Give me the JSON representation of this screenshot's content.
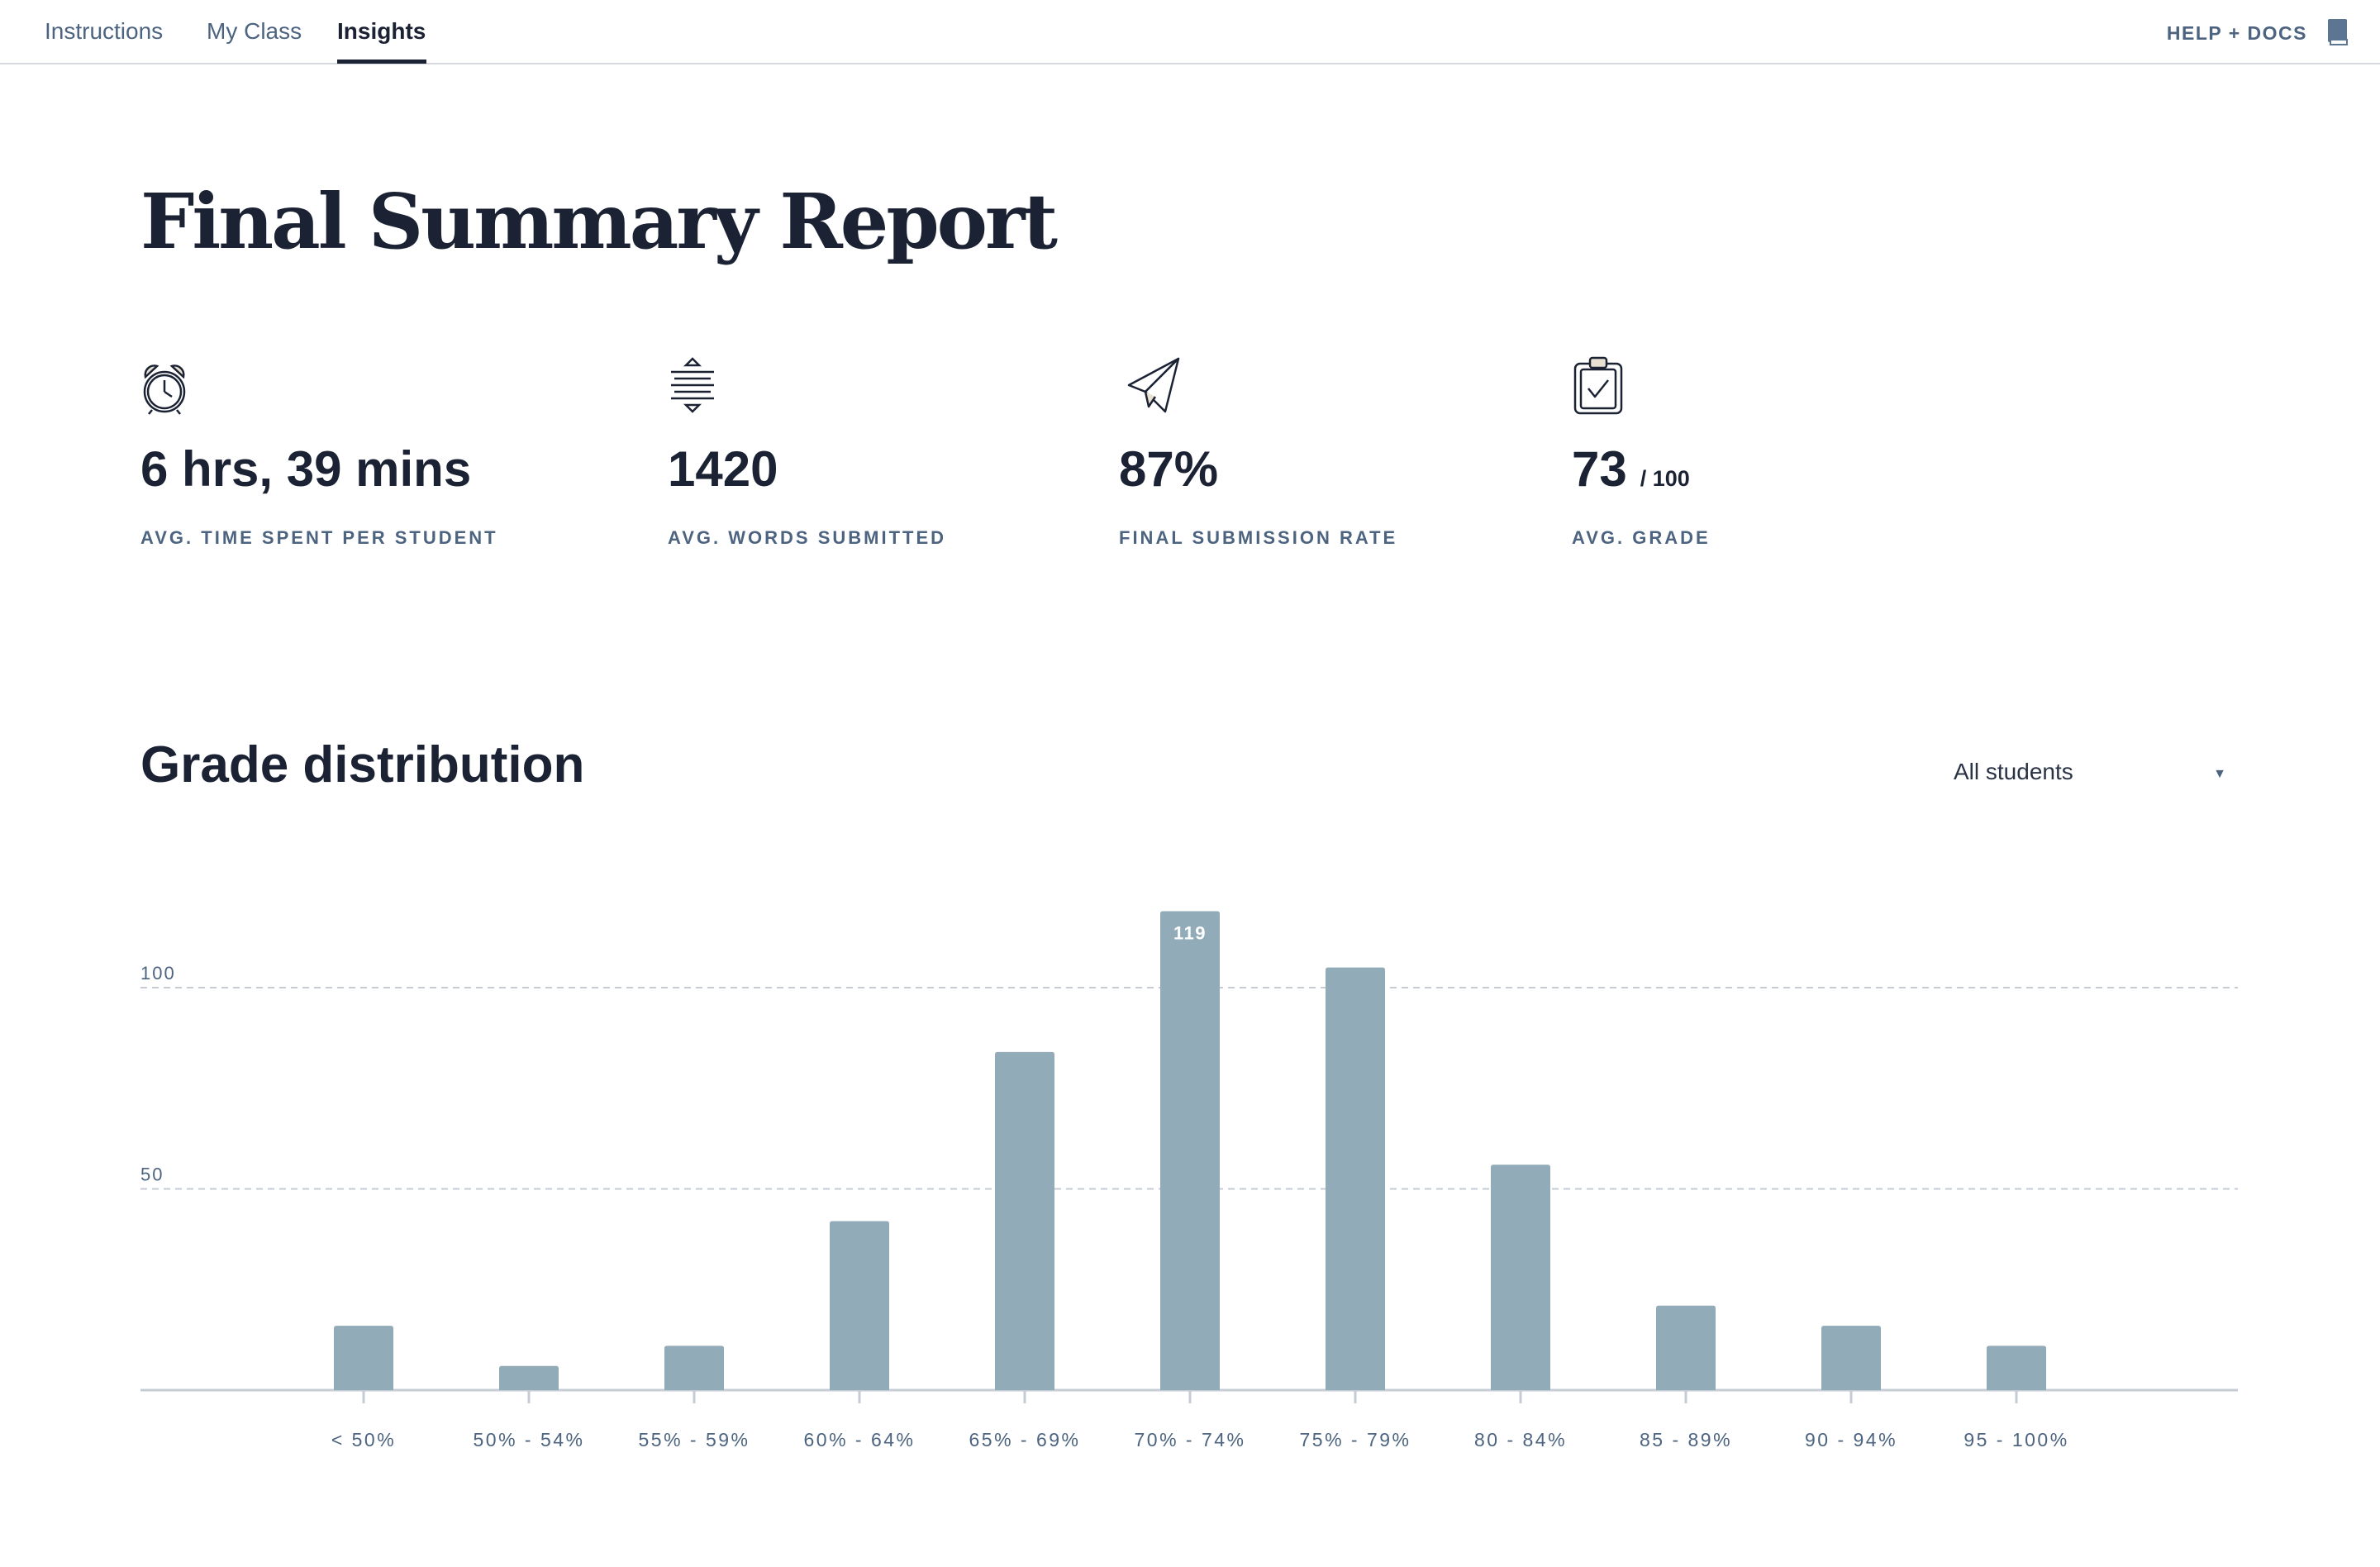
{
  "nav": {
    "tabs": [
      {
        "label": "Instructions",
        "active": false
      },
      {
        "label": "My Class",
        "active": false
      },
      {
        "label": "Insights",
        "active": true
      }
    ],
    "help_label": "HELP + DOCS",
    "help_icon": "book-icon"
  },
  "page_title": "Final Summary Report",
  "stats": [
    {
      "icon": "alarm-clock-icon",
      "value": "6 hrs, 39 mins",
      "label": "AVG. TIME SPENT PER STUDENT"
    },
    {
      "icon": "text-lines-icon",
      "value": "1420",
      "label": "AVG. WORDS SUBMITTED"
    },
    {
      "icon": "paper-plane-icon",
      "value": "87%",
      "label": "FINAL SUBMISSION RATE"
    },
    {
      "icon": "clipboard-check-icon",
      "value": "73",
      "suffix": "/ 100",
      "label": "AVG. GRADE"
    }
  ],
  "section_title": "Grade distribution",
  "filter": {
    "selected": "All students"
  },
  "colors": {
    "bar": "#92abb8",
    "axis": "#c5ccd4",
    "label": "#4d6480",
    "text": "#1b2233"
  },
  "chart_data": {
    "type": "bar",
    "categories": [
      "< 50%",
      "50% - 54%",
      "55% - 59%",
      "60% - 64%",
      "65% - 69%",
      "70% - 74%",
      "75% - 79%",
      "80 - 84%",
      "85 - 89%",
      "90 - 94%",
      "95 - 100%"
    ],
    "values": [
      16,
      6,
      11,
      42,
      84,
      119,
      105,
      56,
      21,
      16,
      11
    ],
    "data_labels": [
      {
        "category": "70% - 74%",
        "value": "119"
      }
    ],
    "y_ticks": [
      50,
      100
    ],
    "ylim": [
      0,
      119
    ],
    "grid": "dashed horizontal at ticks",
    "title": "",
    "xlabel": "",
    "ylabel": ""
  }
}
